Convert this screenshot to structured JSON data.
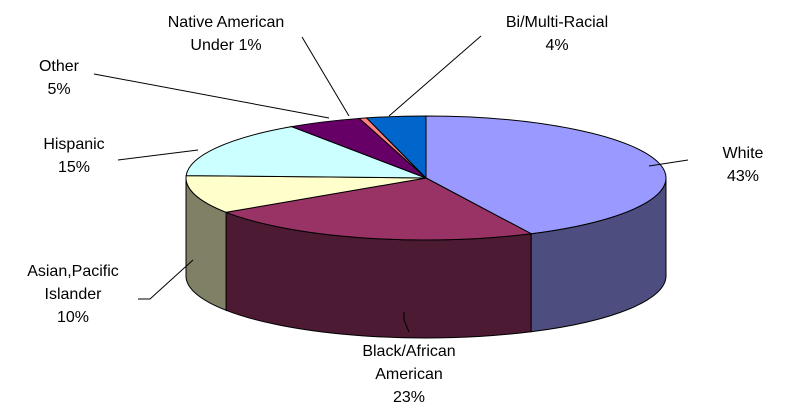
{
  "chart_data": {
    "type": "pie",
    "title": "",
    "three_d": true,
    "legend": "none",
    "slices": [
      {
        "key": "white",
        "label_lines": [
          "White",
          "43%"
        ],
        "value": 43,
        "color": "#9999FF"
      },
      {
        "key": "black",
        "label_lines": [
          "Black/African",
          "American",
          "23%"
        ],
        "value": 23,
        "color": "#993366"
      },
      {
        "key": "asian",
        "label_lines": [
          "Asian,Pacific",
          "Islander",
          "10%"
        ],
        "value": 10,
        "color": "#FFFFCC"
      },
      {
        "key": "hispanic",
        "label_lines": [
          "Hispanic",
          "15%"
        ],
        "value": 15,
        "color": "#CCFFFF"
      },
      {
        "key": "other",
        "label_lines": [
          "Other",
          "5%"
        ],
        "value": 5,
        "color": "#660066"
      },
      {
        "key": "native",
        "label_lines": [
          "Native American",
          "Under 1%"
        ],
        "value": 0.5,
        "color": "#FF8080"
      },
      {
        "key": "multi",
        "label_lines": [
          "Bi/Multi-Racial",
          "4%"
        ],
        "value": 4,
        "color": "#0066CC"
      }
    ]
  }
}
